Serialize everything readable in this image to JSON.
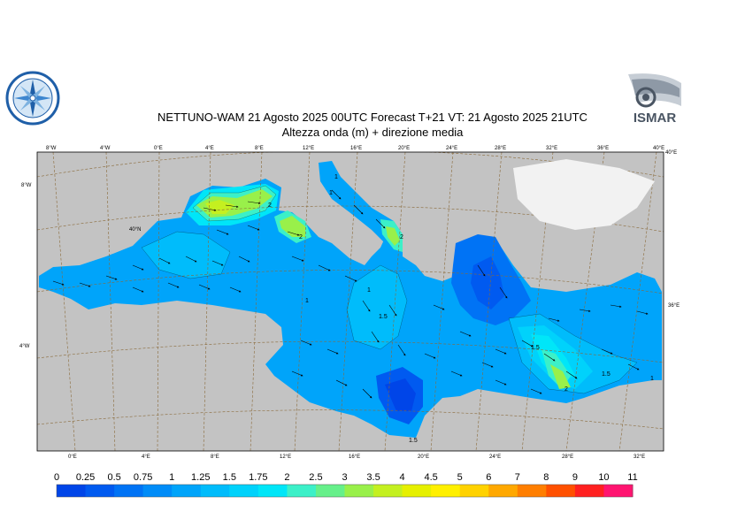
{
  "header": {
    "title_line1": "NETTUNO-WAM  21   Agosto  2025 00UTC Forecast T+21 VT: 21   Agosto  2025 21UTC",
    "title_line2": "Altezza onda (m) + direzione media"
  },
  "logos": {
    "left_icon": "compass-rose-seal",
    "right_text": "ISMAR"
  },
  "map": {
    "top_lon_ticks": [
      "8°W",
      "4°W",
      "0°E",
      "4°E",
      "8°E",
      "12°E",
      "16°E",
      "20°E",
      "24°E",
      "28°E",
      "32°E",
      "36°E",
      "40°E"
    ],
    "bottom_lon_ticks": [
      "0°E",
      "4°E",
      "8°E",
      "12°E",
      "16°E",
      "20°E",
      "24°E",
      "28°E",
      "32°E"
    ],
    "left_lat_ticks": [
      "8°W",
      "40°N",
      "4°W"
    ],
    "right_lat_ticks": [
      "40°E",
      "36°E"
    ],
    "contour_labels": [
      "1",
      "1",
      "1",
      "1",
      "1.5",
      "1.5",
      "2",
      "2",
      "2",
      "1.5",
      "1",
      "1.5",
      "2"
    ]
  },
  "legend": {
    "labels": [
      "0",
      "0.25",
      "0.5",
      "0.75",
      "1",
      "1.25",
      "1.5",
      "1.75",
      "2",
      "2.5",
      "3",
      "3.5",
      "4",
      "4.5",
      "5",
      "6",
      "7",
      "8",
      "9",
      "10",
      "11"
    ],
    "colors": [
      "#0045e8",
      "#005af0",
      "#0073f5",
      "#008cf8",
      "#00a4fa",
      "#00bcfb",
      "#00d2fb",
      "#00e6f8",
      "#3cf0c8",
      "#66f08a",
      "#99f04a",
      "#c4f020",
      "#e6f000",
      "#fff000",
      "#ffd200",
      "#ffa800",
      "#ff7e00",
      "#ff5000",
      "#ff2020",
      "#ff1470",
      "#ff10c8"
    ]
  }
}
